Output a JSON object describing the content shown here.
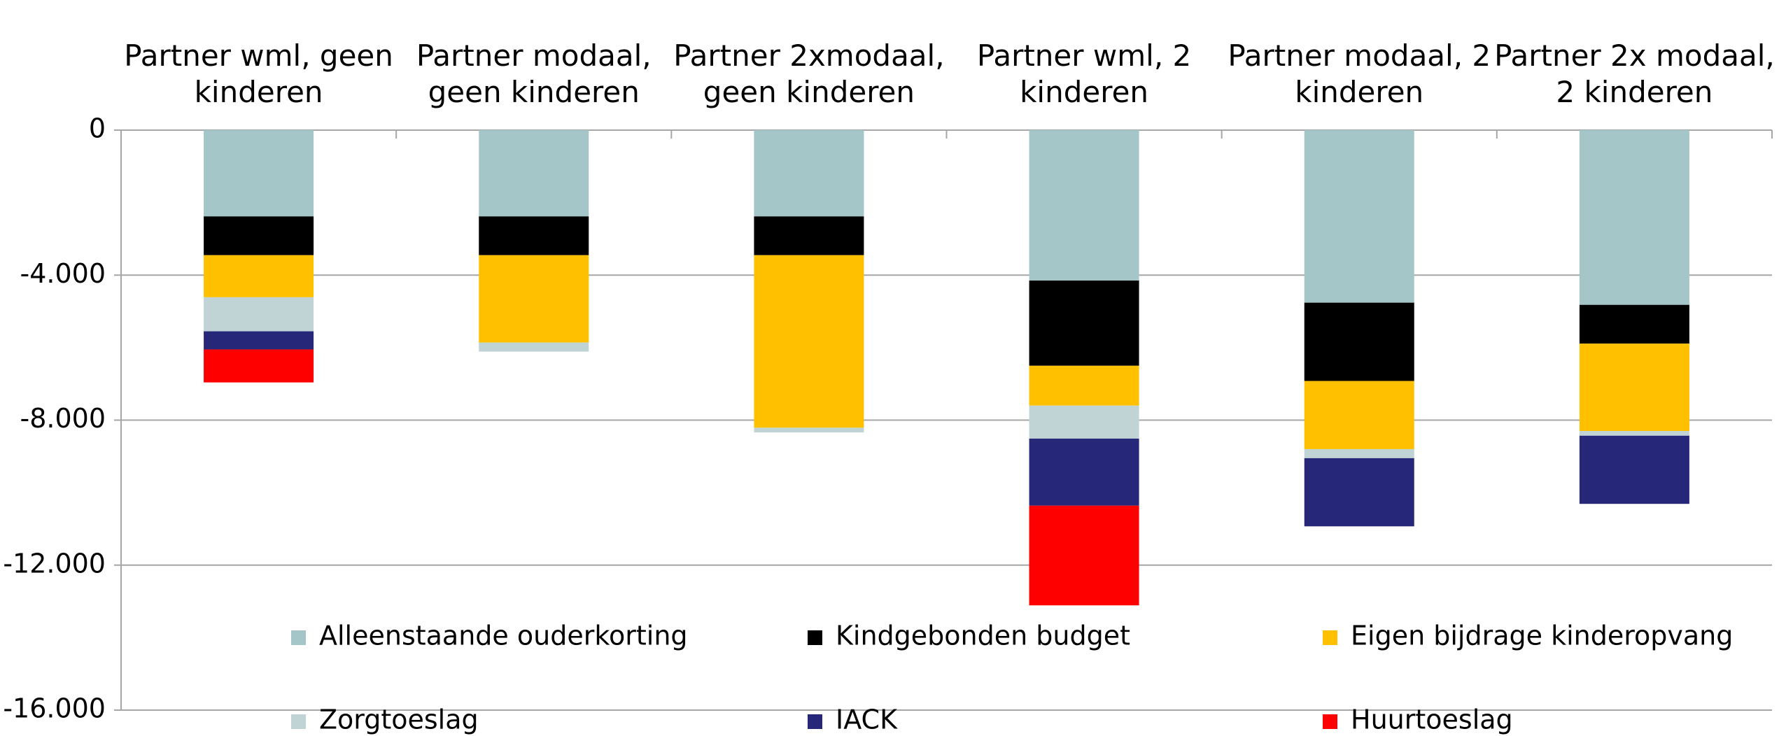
{
  "chart_data": {
    "type": "stacked_bar",
    "categories": [
      "Partner wml, geen kinderen",
      "Partner modaal, geen kinderen",
      "Partner 2xmodaal, geen kinderen",
      "Partner wml, 2 kinderen",
      "Partner modaal, 2 kinderen",
      "Partner 2x modaal, 2 kinderen"
    ],
    "series": [
      {
        "name": "Alleenstaande ouderkorting",
        "color": "#a5c6c8",
        "values": [
          -2380,
          -2380,
          -2380,
          -4150,
          -4760,
          -4820
        ]
      },
      {
        "name": "Kindgebonden budget",
        "color": "#000000",
        "values": [
          -1070,
          -1070,
          -1070,
          -2350,
          -2160,
          -1070
        ]
      },
      {
        "name": "Eigen bijdrage kinderopvang",
        "color": "#ffc000",
        "values": [
          -1160,
          -2410,
          -4760,
          -1100,
          -1880,
          -2410
        ]
      },
      {
        "name": "Zorgtoeslag",
        "color": "#c0d4d6",
        "values": [
          -940,
          -250,
          -130,
          -910,
          -250,
          -130
        ]
      },
      {
        "name": "IACK",
        "color": "#27277a",
        "values": [
          -500,
          0,
          0,
          -1850,
          -1880,
          -1880
        ]
      },
      {
        "name": "Huurtoeslag",
        "color": "#ff0000",
        "values": [
          -910,
          0,
          0,
          -2750,
          0,
          0
        ]
      }
    ],
    "ylim": [
      -16000,
      0
    ],
    "yticks": [
      0,
      {
        "value": -4000,
        "label": "-4.000"
      },
      {
        "value": -8000,
        "label": "-8.000"
      },
      {
        "value": -12000,
        "label": "-12.000"
      },
      {
        "value": -16000,
        "label": "-16.000"
      }
    ],
    "grid": true,
    "legend": "bottom"
  }
}
